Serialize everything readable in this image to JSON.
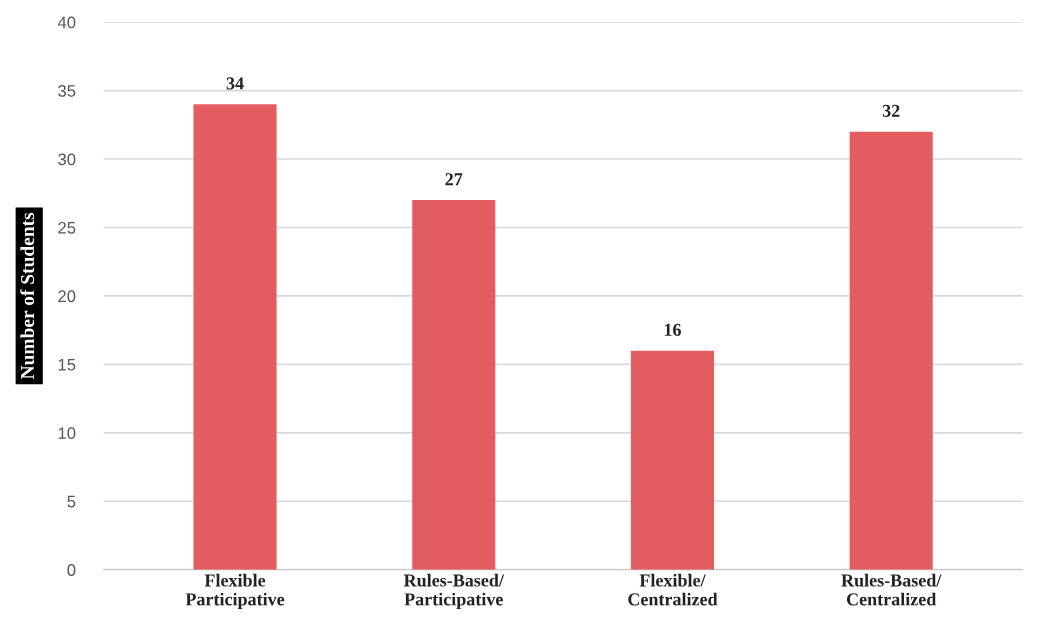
{
  "chart_data": {
    "type": "bar",
    "ylabel": "Number of Students",
    "categories": [
      "Flexible\nParticipative",
      "Rules-Based/\nParticipative",
      "Flexible/\nCentralized",
      "Rules-Based/\nCentralized"
    ],
    "values": [
      34,
      27,
      16,
      32
    ],
    "color": "#e35d60",
    "ylim": [
      0,
      40
    ],
    "yticks": [
      0,
      5,
      10,
      15,
      20,
      25,
      30,
      35,
      40
    ],
    "grid": "y",
    "data_labels": true
  }
}
